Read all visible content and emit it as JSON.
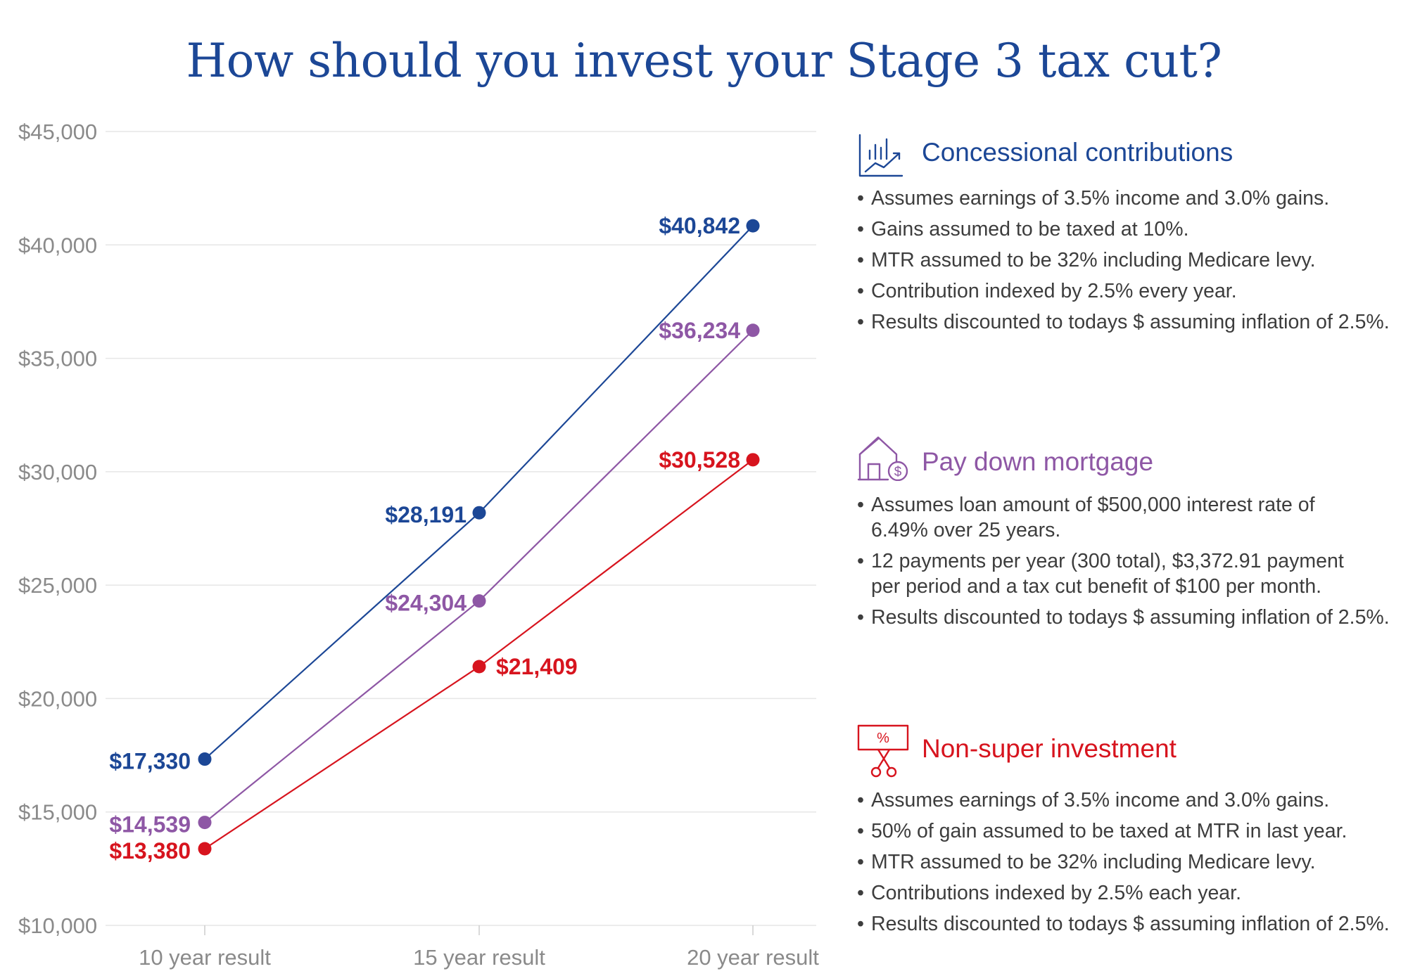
{
  "title": "How should you invest your Stage 3 tax cut?",
  "colors": {
    "concessional": "#1c4796",
    "mortgage": "#8e57a5",
    "nonsuper": "#d7141e",
    "grid": "#e6e6e6",
    "tick": "#8a8a8a"
  },
  "chart_data": {
    "type": "line",
    "categories": [
      "10 year result",
      "15 year result",
      "20 year result"
    ],
    "y_ticks": [
      "$45,000",
      "$40,000",
      "$35,000",
      "$30,000",
      "$25,000",
      "$20,000",
      "$15,000",
      "$10,000"
    ],
    "ylim": [
      10000,
      45000
    ],
    "grid": true,
    "series": [
      {
        "name": "Concessional contributions",
        "color": "#1c4796",
        "values": [
          17330,
          28191,
          40842
        ],
        "labels": [
          "$17,330",
          "$28,191",
          "$40,842"
        ]
      },
      {
        "name": "Pay down mortgage",
        "color": "#8e57a5",
        "values": [
          14539,
          24304,
          36234
        ],
        "labels": [
          "$14,539",
          "$24,304",
          "$36,234"
        ]
      },
      {
        "name": "Non-super investment",
        "color": "#d7141e",
        "values": [
          13380,
          21409,
          30528
        ],
        "labels": [
          "$13,380",
          "$21,409",
          "$30,528"
        ]
      }
    ]
  },
  "panels": [
    {
      "title": "Concessional contributions",
      "icon": "chart-trend-icon",
      "bullets": [
        "Assumes earnings of 3.5% income and 3.0% gains.",
        "Gains assumed to be taxed at 10%.",
        "MTR assumed to be 32% including Medicare levy.",
        "Contribution indexed by 2.5% every year.",
        "Results discounted to todays $ assuming inflation of 2.5%."
      ]
    },
    {
      "title": "Pay down mortgage",
      "icon": "house-dollar-icon",
      "bullets": [
        "Assumes loan amount of $500,000 interest rate of 6.49% over 25 years.",
        "12 payments per year (300 total), $3,372.91 payment per period and a tax cut benefit of $100 per month.",
        "Results discounted to todays $ assuming inflation of 2.5%."
      ]
    },
    {
      "title": "Non-super investment",
      "icon": "percent-cut-icon",
      "bullets": [
        "Assumes earnings of 3.5% income and 3.0% gains.",
        "50% of gain assumed to be taxed at MTR in last year.",
        "MTR assumed to be 32% including Medicare levy.",
        "Contributions indexed by 2.5% each year.",
        "Results discounted to todays $ assuming inflation of 2.5%."
      ]
    }
  ]
}
